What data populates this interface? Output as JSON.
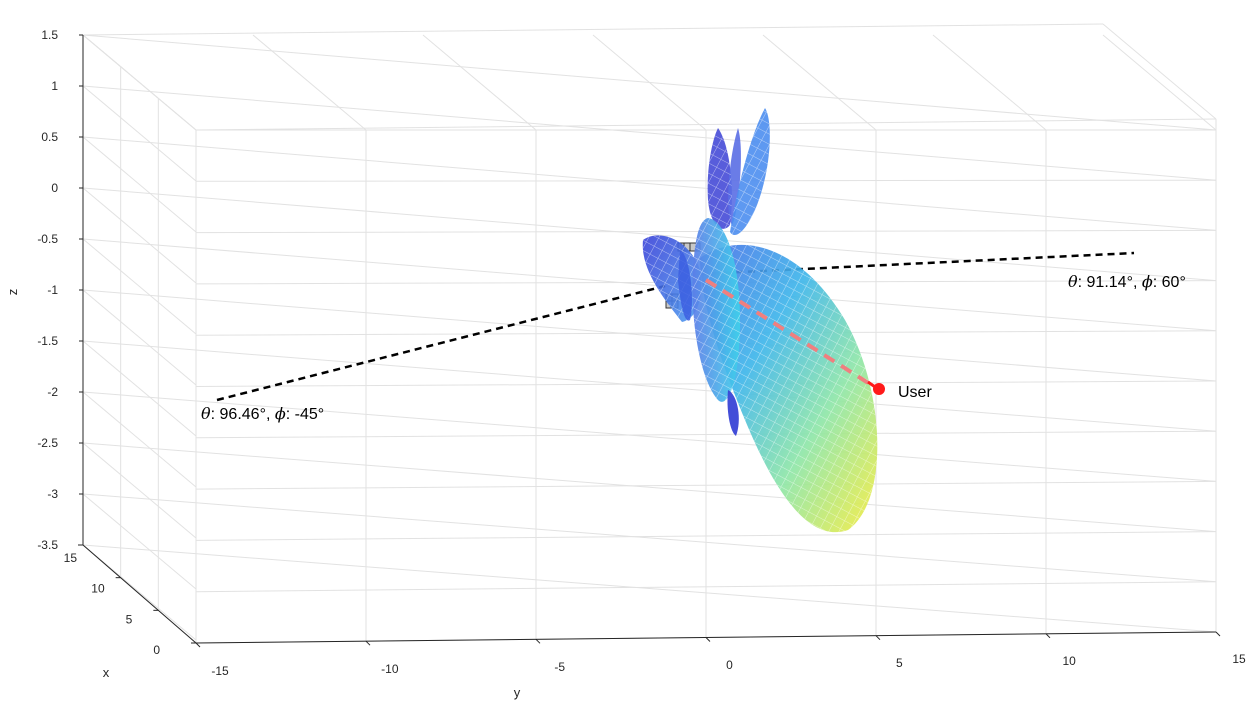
{
  "chart_data": {
    "type": "surface3d",
    "axes": {
      "x": {
        "label": "x",
        "ticks": [
          "0",
          "5",
          "10",
          "15"
        ],
        "range": [
          0,
          15
        ]
      },
      "y": {
        "label": "y",
        "ticks": [
          "-15",
          "-10",
          "-5",
          "0",
          "5",
          "10",
          "15"
        ],
        "range": [
          -15,
          15
        ]
      },
      "z": {
        "label": "z",
        "ticks": [
          "1.5",
          "1",
          "0.5",
          "0",
          "-0.5",
          "-1",
          "-1.5",
          "-2",
          "-2.5",
          "-3",
          "-3.5"
        ],
        "range": [
          -3.5,
          1.5
        ]
      }
    },
    "grid": true,
    "colormap": "jet",
    "annotations": [
      {
        "id": "anno_left",
        "sym1": "θ",
        "text1": ": 96.46°, ",
        "sym2": "ϕ",
        "text2": ": -45°",
        "direction": {
          "theta_deg": 96.46,
          "phi_deg": -45
        }
      },
      {
        "id": "anno_right",
        "sym1": "θ",
        "text1": ": 91.14°, ",
        "sym2": "ϕ",
        "text2": ": 60°",
        "direction": {
          "theta_deg": 91.14,
          "phi_deg": 60
        }
      }
    ],
    "user": {
      "label": "User"
    },
    "colors": {
      "dashed_lines": "#000000",
      "user": "#ff1a1a",
      "user_path": "#f08080",
      "grid": "#e3e3e3"
    }
  }
}
